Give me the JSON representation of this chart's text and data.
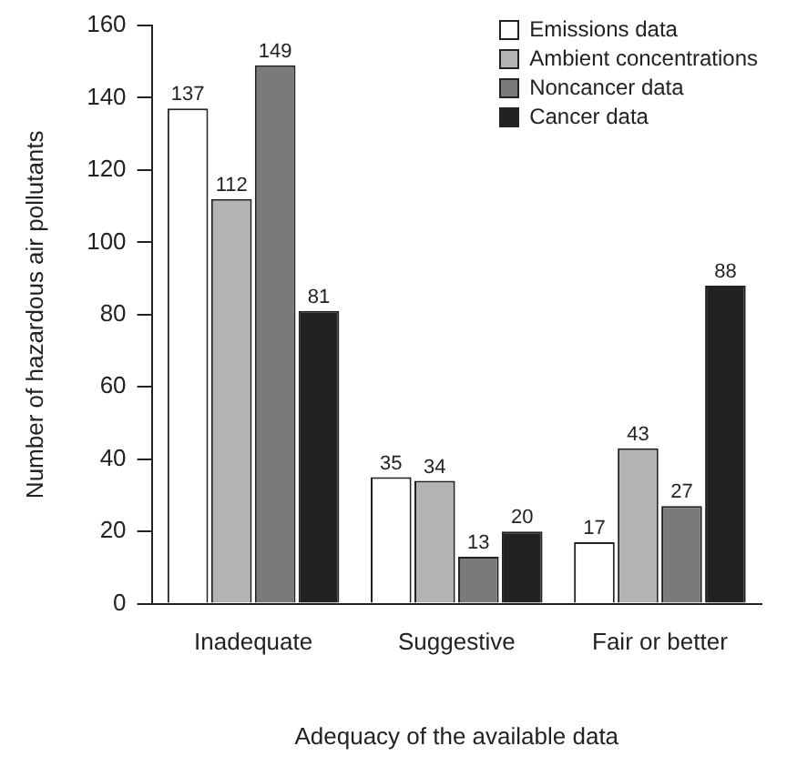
{
  "chart_data": {
    "type": "bar",
    "xlabel": "Adequacy of the available data",
    "ylabel": "Number of hazardous air pollutants",
    "categories": [
      "Inadequate",
      "Suggestive",
      "Fair or better"
    ],
    "series": [
      {
        "name": "Emissions data",
        "color": "#ffffff",
        "values": [
          137,
          35,
          17
        ]
      },
      {
        "name": "Ambient concentrations",
        "color": "#b4b4b4",
        "values": [
          112,
          34,
          43
        ]
      },
      {
        "name": "Noncancer data",
        "color": "#7a7a7a",
        "values": [
          149,
          13,
          27
        ]
      },
      {
        "name": "Cancer data",
        "color": "#222222",
        "values": [
          81,
          20,
          88
        ]
      }
    ],
    "ylim": [
      0,
      160
    ],
    "yticks": [
      0,
      20,
      40,
      60,
      80,
      100,
      120,
      140,
      160
    ],
    "grid": false,
    "legend": "top right",
    "data_labels": true
  }
}
